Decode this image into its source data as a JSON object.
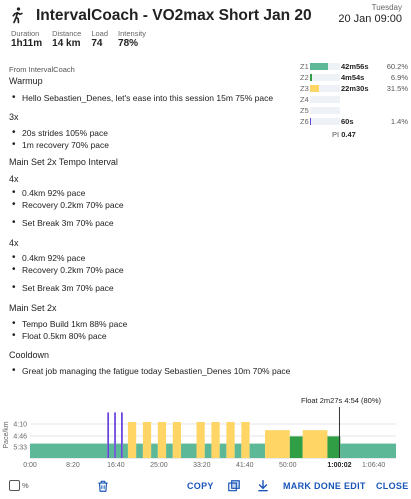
{
  "header": {
    "title": "IntervalCoach - VO2max Short Jan 20",
    "day_of_week": "Tuesday",
    "date": "20 Jan 09:00",
    "stats": [
      {
        "label": "Duration",
        "value": "1h11m"
      },
      {
        "label": "Distance",
        "value": "14 km"
      },
      {
        "label": "Load",
        "value": "74"
      },
      {
        "label": "Intensity",
        "value": "78%"
      }
    ]
  },
  "content": {
    "from": "From IntervalCoach",
    "warmup_title": "Warmup",
    "warmup_items": [
      "Hello Sebastien_Denes, let's ease into this session 15m 75% pace"
    ],
    "block3x_title": "3x",
    "block3x_items": [
      "20s strides 105% pace",
      "1m recovery 70% pace"
    ],
    "main1_title": "Main Set 2x Tempo Interval",
    "main1_rep1_title": "4x",
    "main1_rep1_items": [
      "0.4km 92% pace",
      "Recovery 0.2km 70% pace"
    ],
    "main1_break1": "Set Break 3m 70% pace",
    "main1_rep2_title": "4x",
    "main1_rep2_items": [
      "0.4km 92% pace",
      "Recovery 0.2km 70% pace"
    ],
    "main1_break2": "Set Break 3m 70% pace",
    "main2_title": "Main Set 2x",
    "main2_items": [
      "Tempo Build 1km 88% pace",
      "Float 0.5km 80% pace"
    ],
    "cooldown_title": "Cooldown",
    "cooldown_items": [
      "Great job managing the fatigue today Sebastien_Denes 10m 70% pace"
    ]
  },
  "zones": {
    "rows": [
      {
        "name": "Z1",
        "time": "42m56s",
        "percent": "60.2%",
        "fraction": 0.602,
        "color": "#5cb896"
      },
      {
        "name": "Z2",
        "time": "4m54s",
        "percent": "6.9%",
        "fraction": 0.069,
        "color": "#2f9e44"
      },
      {
        "name": "Z3",
        "time": "22m30s",
        "percent": "31.5%",
        "fraction": 0.315,
        "color": "#ffd666"
      },
      {
        "name": "Z4",
        "time": "",
        "percent": "",
        "fraction": 0,
        "color": "#f59f00"
      },
      {
        "name": "Z5",
        "time": "",
        "percent": "",
        "fraction": 0,
        "color": "#e8590c"
      },
      {
        "name": "Z6",
        "time": "60s",
        "percent": "1.4%",
        "fraction": 0.014,
        "color": "#6741d9"
      }
    ],
    "pi_label": "PI",
    "pi_value": "0.47"
  },
  "chart": {
    "tooltip": "Float 2m27s 4:54 (80%)",
    "ylabel": "Pace/km",
    "y_ticks": [
      "4:10",
      "4:46",
      "5:33"
    ],
    "x_ticks": [
      "0:00",
      "8:20",
      "16:40",
      "25:00",
      "33:20",
      "41:40",
      "50:00",
      "1:00:02",
      "1:06:40"
    ],
    "x_ticks_min": [
      0,
      8.333,
      16.667,
      25,
      33.333,
      41.667,
      50,
      60.033,
      66.667
    ],
    "x_max_min": 71,
    "cursor_min": 60.033,
    "colors": {
      "z1": "#5cb896",
      "z2": "#2f9e44",
      "z3": "#ffd666",
      "z6": "#6741d9"
    }
  },
  "chart_data": {
    "type": "bar",
    "xlabel": "",
    "ylabel": "Pace/km",
    "x_unit": "min",
    "series": [
      {
        "name": "Warmup",
        "start": 0,
        "end": 15,
        "zone": "z1",
        "level": 0.3
      },
      {
        "name": "Stride 1",
        "start": 15.0,
        "end": 15.33,
        "zone": "z6",
        "level": 0.95
      },
      {
        "name": "Recovery",
        "start": 15.33,
        "end": 16.33,
        "zone": "z1",
        "level": 0.3
      },
      {
        "name": "Stride 2",
        "start": 16.33,
        "end": 16.66,
        "zone": "z6",
        "level": 0.95
      },
      {
        "name": "Recovery",
        "start": 16.66,
        "end": 17.66,
        "zone": "z1",
        "level": 0.3
      },
      {
        "name": "Stride 3",
        "start": 17.66,
        "end": 18.0,
        "zone": "z6",
        "level": 0.95
      },
      {
        "name": "Recovery",
        "start": 18.0,
        "end": 19.0,
        "zone": "z1",
        "level": 0.3
      },
      {
        "name": "Rep",
        "start": 19.0,
        "end": 20.6,
        "zone": "z3",
        "level": 0.75
      },
      {
        "name": "Rec",
        "start": 20.6,
        "end": 21.9,
        "zone": "z1",
        "level": 0.3
      },
      {
        "name": "Rep",
        "start": 21.9,
        "end": 23.5,
        "zone": "z3",
        "level": 0.75
      },
      {
        "name": "Rec",
        "start": 23.5,
        "end": 24.8,
        "zone": "z1",
        "level": 0.3
      },
      {
        "name": "Rep",
        "start": 24.8,
        "end": 26.4,
        "zone": "z3",
        "level": 0.75
      },
      {
        "name": "Rec",
        "start": 26.4,
        "end": 27.7,
        "zone": "z1",
        "level": 0.3
      },
      {
        "name": "Rep",
        "start": 27.7,
        "end": 29.3,
        "zone": "z3",
        "level": 0.75
      },
      {
        "name": "Set Break",
        "start": 29.3,
        "end": 32.3,
        "zone": "z1",
        "level": 0.3
      },
      {
        "name": "Rep",
        "start": 32.3,
        "end": 33.9,
        "zone": "z3",
        "level": 0.75
      },
      {
        "name": "Rec",
        "start": 33.9,
        "end": 35.2,
        "zone": "z1",
        "level": 0.3
      },
      {
        "name": "Rep",
        "start": 35.2,
        "end": 36.8,
        "zone": "z3",
        "level": 0.75
      },
      {
        "name": "Rec",
        "start": 36.8,
        "end": 38.1,
        "zone": "z1",
        "level": 0.3
      },
      {
        "name": "Rep",
        "start": 38.1,
        "end": 39.7,
        "zone": "z3",
        "level": 0.75
      },
      {
        "name": "Rec",
        "start": 39.7,
        "end": 41.0,
        "zone": "z1",
        "level": 0.3
      },
      {
        "name": "Rep",
        "start": 41.0,
        "end": 42.6,
        "zone": "z3",
        "level": 0.75
      },
      {
        "name": "Set Break",
        "start": 42.6,
        "end": 45.6,
        "zone": "z1",
        "level": 0.3
      },
      {
        "name": "Tempo Build",
        "start": 45.6,
        "end": 50.4,
        "zone": "z3",
        "level": 0.58
      },
      {
        "name": "Float",
        "start": 50.4,
        "end": 52.9,
        "zone": "z2",
        "level": 0.45
      },
      {
        "name": "Tempo Build",
        "start": 52.9,
        "end": 57.7,
        "zone": "z3",
        "level": 0.58
      },
      {
        "name": "Float",
        "start": 57.7,
        "end": 60.2,
        "zone": "z2",
        "level": 0.45
      },
      {
        "name": "Cooldown",
        "start": 60.2,
        "end": 71.0,
        "zone": "z1",
        "level": 0.3
      }
    ]
  },
  "toolbar": {
    "percent_label": "%",
    "copy": "COPY",
    "mark_done": "MARK DONE",
    "edit": "EDIT",
    "close": "CLOSE"
  }
}
